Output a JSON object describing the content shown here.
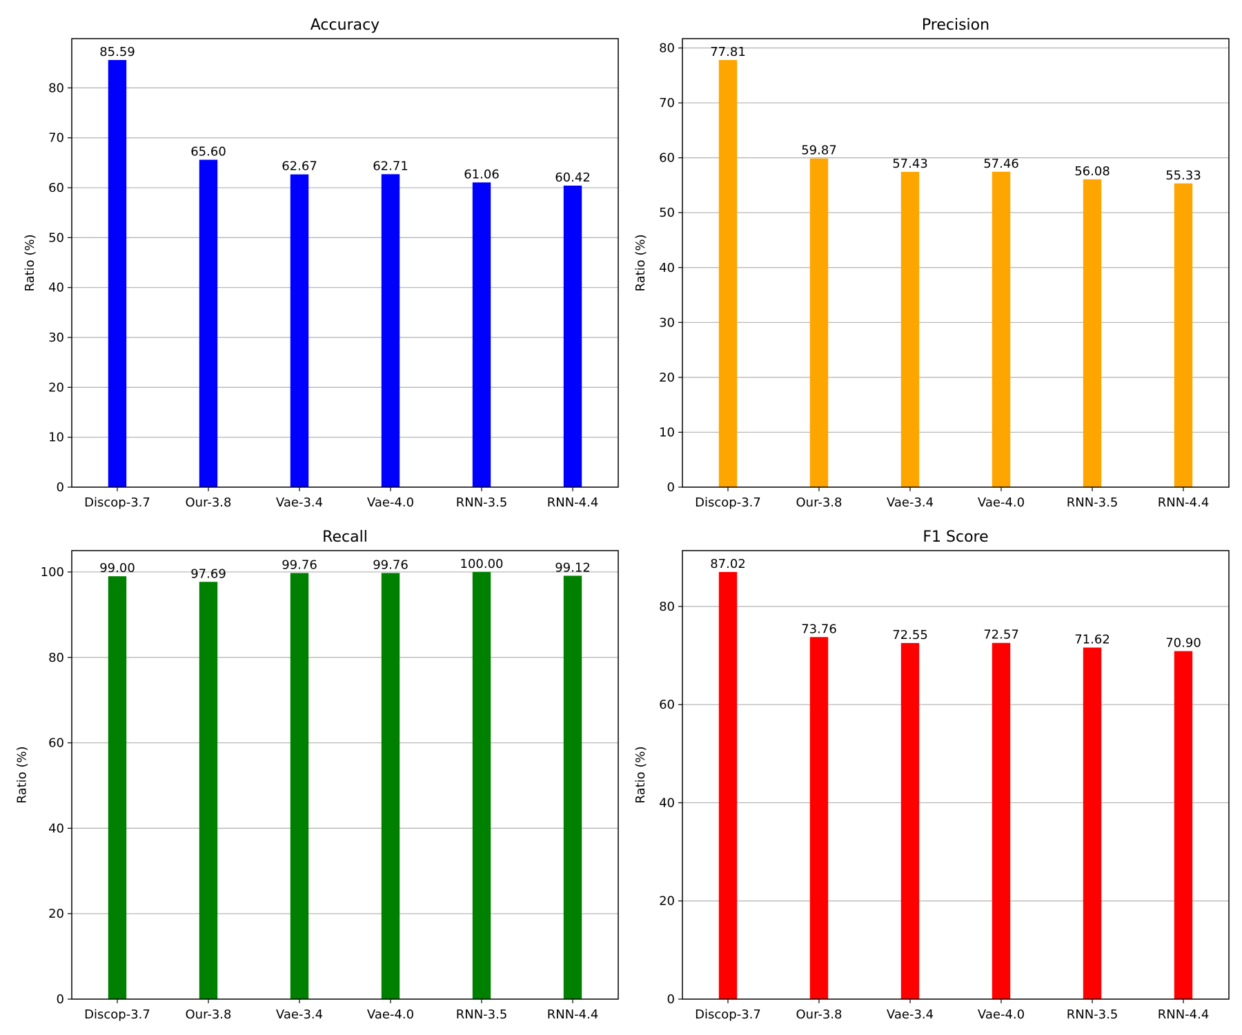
{
  "chart_data": [
    {
      "type": "bar",
      "title": "Accuracy",
      "xlabel": "",
      "ylabel": "Ratio (%)",
      "categories": [
        "Discop-3.7",
        "Our-3.8",
        "Vae-3.4",
        "Vae-4.0",
        "RNN-3.5",
        "RNN-4.4"
      ],
      "values": [
        85.59,
        65.6,
        62.67,
        62.71,
        61.06,
        60.42
      ],
      "value_labels": [
        "85.59",
        "65.60",
        "62.67",
        "62.71",
        "61.06",
        "60.42"
      ],
      "ylim": [
        0,
        89.87
      ],
      "yticks": [
        0,
        10,
        20,
        30,
        40,
        50,
        60,
        70,
        80
      ],
      "grid": "y",
      "color": "#0000ff"
    },
    {
      "type": "bar",
      "title": "Precision",
      "xlabel": "",
      "ylabel": "Ratio (%)",
      "categories": [
        "Discop-3.7",
        "Our-3.8",
        "Vae-3.4",
        "Vae-4.0",
        "RNN-3.5",
        "RNN-4.4"
      ],
      "values": [
        77.81,
        59.87,
        57.43,
        57.46,
        56.08,
        55.33
      ],
      "value_labels": [
        "77.81",
        "59.87",
        "57.43",
        "57.46",
        "56.08",
        "55.33"
      ],
      "ylim": [
        0,
        81.7
      ],
      "yticks": [
        0,
        10,
        20,
        30,
        40,
        50,
        60,
        70,
        80
      ],
      "grid": "y",
      "color": "#ffa500"
    },
    {
      "type": "bar",
      "title": "Recall",
      "xlabel": "",
      "ylabel": "Ratio (%)",
      "categories": [
        "Discop-3.7",
        "Our-3.8",
        "Vae-3.4",
        "Vae-4.0",
        "RNN-3.5",
        "RNN-4.4"
      ],
      "values": [
        99.0,
        97.69,
        99.76,
        99.76,
        100.0,
        99.12
      ],
      "value_labels": [
        "99.00",
        "97.69",
        "99.76",
        "99.76",
        "100.00",
        "99.12"
      ],
      "ylim": [
        0,
        105
      ],
      "yticks": [
        0,
        20,
        40,
        60,
        80,
        100
      ],
      "grid": "y",
      "color": "#008000"
    },
    {
      "type": "bar",
      "title": "F1 Score",
      "xlabel": "",
      "ylabel": "Ratio (%)",
      "categories": [
        "Discop-3.7",
        "Our-3.8",
        "Vae-3.4",
        "Vae-4.0",
        "RNN-3.5",
        "RNN-4.4"
      ],
      "values": [
        87.02,
        73.76,
        72.55,
        72.57,
        71.62,
        70.9
      ],
      "value_labels": [
        "87.02",
        "73.76",
        "72.55",
        "72.57",
        "71.62",
        "70.90"
      ],
      "ylim": [
        0,
        91.37
      ],
      "yticks": [
        0,
        20,
        40,
        60,
        80
      ],
      "grid": "y",
      "color": "#ff0000"
    }
  ]
}
